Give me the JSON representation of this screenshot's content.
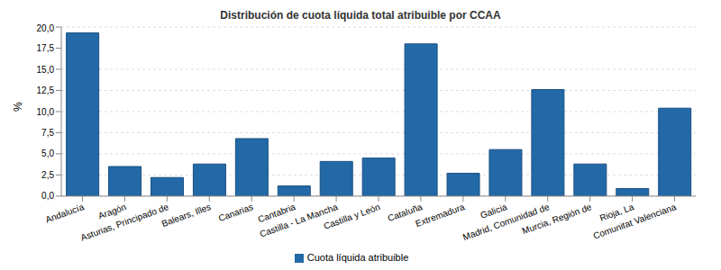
{
  "chart_data": {
    "type": "bar",
    "title": "Distribución de cuota líquida total atribuible por CCAA",
    "y_label": "%",
    "categories": [
      "Andalucía",
      "Aragón",
      "Asturias, Principado de",
      "Balears, Illes",
      "Canarias",
      "Cantabria",
      "Castilla - La Mancha",
      "Castilla y León",
      "Cataluña",
      "Extremadura",
      "Galicia",
      "Madrid, Comunidad de",
      "Murcia, Región de",
      "Rioja, La",
      "Comunitat Valenciana"
    ],
    "series": [
      {
        "name": "Cuota líquida atribuible",
        "color": "#2369a8",
        "values": [
          19.3,
          3.5,
          2.2,
          3.8,
          6.8,
          1.2,
          4.1,
          4.5,
          18.0,
          2.7,
          5.5,
          12.6,
          3.8,
          0.9,
          10.4
        ]
      }
    ],
    "ylim": [
      0,
      20
    ],
    "yticks": [
      {
        "value": 0,
        "label": "0,0"
      },
      {
        "value": 2.5,
        "label": "2,5"
      },
      {
        "value": 5,
        "label": "5,0"
      },
      {
        "value": 7.5,
        "label": "7,5"
      },
      {
        "value": 10,
        "label": "10,0"
      },
      {
        "value": 12.5,
        "label": "12,5"
      },
      {
        "value": 15,
        "label": "15,0"
      },
      {
        "value": 17.5,
        "label": "17,5"
      },
      {
        "value": 20,
        "label": "20,0"
      }
    ],
    "grid": true,
    "legend": "bottom"
  }
}
